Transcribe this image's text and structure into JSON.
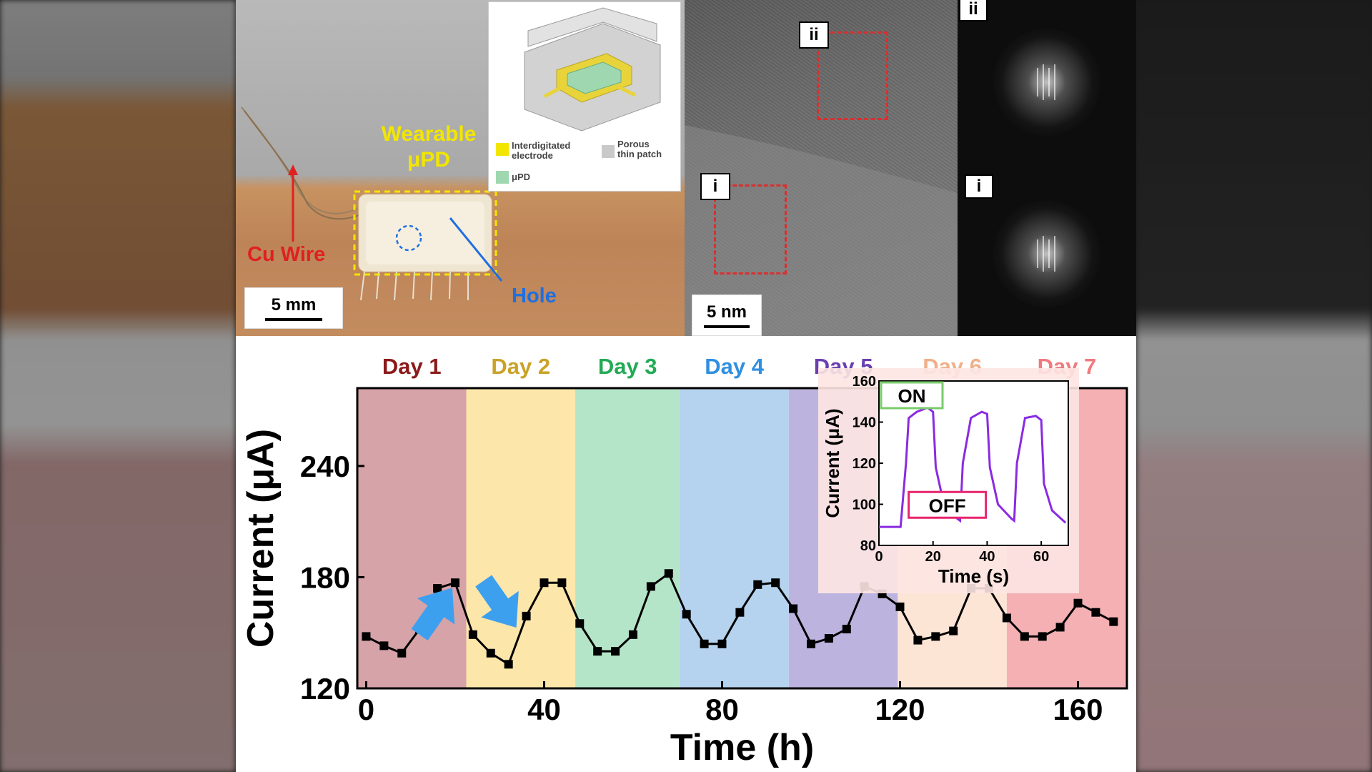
{
  "photo": {
    "device_label_line1": "Wearable",
    "device_label_line2": "μPD",
    "wire_label": "Cu Wire",
    "hole_label": "Hole",
    "scale_label": "5 mm",
    "schematic_legend": {
      "electrode_line1": "Interdigitated",
      "electrode_line2": "electrode",
      "patch_line1": "Porous",
      "patch_line2": "thin patch",
      "upd": "μPD"
    },
    "colors": {
      "device": "#f2e600",
      "wire": "#e02020",
      "hole": "#1f6fe0"
    }
  },
  "tem": {
    "scale_label": "5 nm",
    "region_i": "i",
    "region_ii": "ii"
  },
  "chart_data": [
    {
      "type": "line",
      "xlabel": "Time (h)",
      "ylabel": "Current (μA)",
      "xlim": [
        -2,
        171
      ],
      "ylim": [
        120,
        282
      ],
      "xticks": [
        0,
        40,
        80,
        120,
        160
      ],
      "yticks": [
        120,
        180,
        240
      ],
      "days": [
        {
          "label": "Day 1",
          "start": -2,
          "end": 22.5,
          "color": "#d6a3a8",
          "label_color": "#8b1a1a"
        },
        {
          "label": "Day 2",
          "start": 22.5,
          "end": 47,
          "color": "#fde6aa",
          "label_color": "#c9a227"
        },
        {
          "label": "Day 3",
          "start": 47,
          "end": 70.5,
          "color": "#b5e5c8",
          "label_color": "#22aa55"
        },
        {
          "label": "Day 4",
          "start": 70.5,
          "end": 95,
          "color": "#b5d3ee",
          "label_color": "#2f8fe0"
        },
        {
          "label": "Day 5",
          "start": 95,
          "end": 119.5,
          "color": "#bcb4de",
          "label_color": "#6a3fb0"
        },
        {
          "label": "Day 6",
          "start": 119.5,
          "end": 144,
          "color": "#fde5d6",
          "label_color": "#f0b08a"
        },
        {
          "label": "Day 7",
          "start": 144,
          "end": 171,
          "color": "#f4b0b3",
          "label_color": "#f07a7e"
        }
      ],
      "x": [
        0,
        4,
        8,
        12,
        16,
        20,
        24,
        28,
        32,
        36,
        40,
        44,
        48,
        52,
        56,
        60,
        64,
        68,
        72,
        76,
        80,
        84,
        88,
        92,
        96,
        100,
        104,
        108,
        112,
        116,
        120,
        124,
        128,
        132,
        136,
        140,
        144,
        148,
        152,
        156,
        160,
        164,
        168
      ],
      "values": [
        148,
        143,
        139,
        152,
        174,
        177,
        149,
        139,
        133,
        159,
        177,
        177,
        155,
        140,
        140,
        149,
        175,
        182,
        160,
        144,
        144,
        161,
        176,
        177,
        163,
        144,
        147,
        152,
        175,
        171,
        164,
        146,
        148,
        151,
        174,
        174,
        158,
        148,
        148,
        153,
        166,
        161,
        156
      ],
      "arrows": [
        "up",
        "down"
      ],
      "series": [
        {
          "color": "#000000"
        }
      ]
    },
    {
      "type": "line",
      "xlabel": "Time (s)",
      "ylabel": "Current (μA)",
      "xlim": [
        0,
        70
      ],
      "ylim": [
        80,
        160
      ],
      "xticks": [
        0,
        20,
        40,
        60
      ],
      "yticks": [
        80,
        100,
        120,
        140,
        160
      ],
      "on_label": "ON",
      "off_label": "OFF",
      "series": [
        {
          "color": "#8a2be2"
        }
      ],
      "x": [
        0,
        8,
        10,
        11,
        14,
        18,
        20,
        21,
        24,
        29,
        30,
        31,
        34,
        38,
        40,
        41,
        44,
        49,
        50,
        51,
        54,
        58,
        60,
        61,
        64,
        69
      ],
      "values": [
        89,
        89,
        120,
        142,
        145,
        147,
        145,
        118,
        100,
        93,
        92,
        120,
        142,
        145,
        144,
        118,
        100,
        93,
        92,
        120,
        142,
        143,
        141,
        110,
        97,
        91
      ]
    }
  ]
}
